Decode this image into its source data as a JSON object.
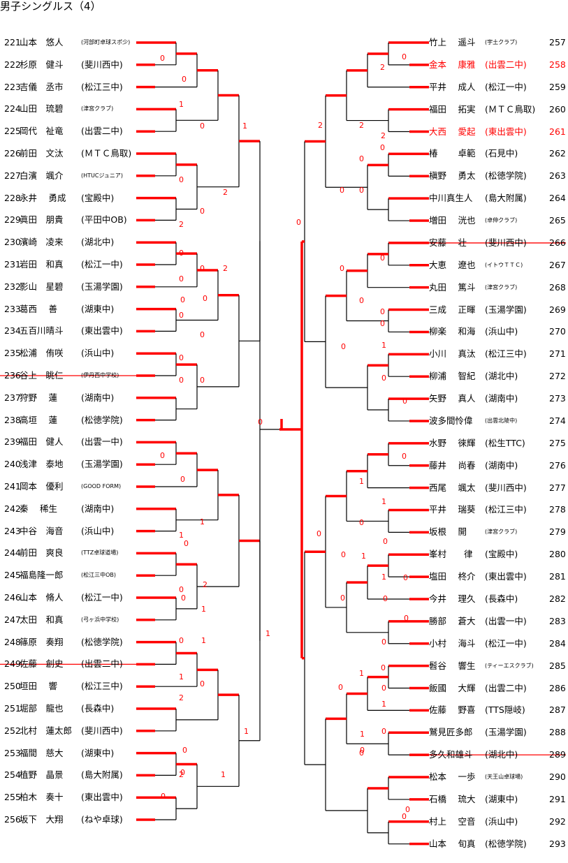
{
  "title": "男子シングルス（4）",
  "colors": {
    "win": "#ff0000",
    "line": "#000000",
    "winner_text": "#ff0000"
  },
  "left": [
    {
      "no": "221",
      "name": "山本　悠人",
      "aff": "(河部町卓球スポ少)",
      "small": true
    },
    {
      "no": "222",
      "name": "杉原　健斗",
      "aff": "(斐川西中)"
    },
    {
      "no": "223",
      "name": "吉儀　丞市",
      "aff": "(松江三中)"
    },
    {
      "no": "224",
      "name": "山田　琉碧",
      "aff": "(津宮クラブ)",
      "small": true
    },
    {
      "no": "225",
      "name": "岡代　祉竜",
      "aff": "(出雲二中)"
    },
    {
      "no": "226",
      "name": "前田　文汰",
      "aff": "(ＭＴＣ鳥取)"
    },
    {
      "no": "227",
      "name": "白濱　颯介",
      "aff": "(HTUCジュニア)",
      "small": true
    },
    {
      "no": "228",
      "name": "永井　 勇成",
      "aff": "(宝殿中)"
    },
    {
      "no": "229",
      "name": "眞田　朋貴",
      "aff": "(平田中OB)"
    },
    {
      "no": "230",
      "name": "濱崎　凌来",
      "aff": "(湖北中)"
    },
    {
      "no": "231",
      "name": "岩田　和真",
      "aff": "(松江一中)"
    },
    {
      "no": "232",
      "name": "影山　星碧",
      "aff": "(玉湯学園)"
    },
    {
      "no": "233",
      "name": "葛西　 善",
      "aff": "(湖東中)"
    },
    {
      "no": "234",
      "name": "五百川晴斗",
      "aff": "(東出雲中)"
    },
    {
      "no": "235",
      "name": "松浦　侑咲",
      "aff": "(浜山中)"
    },
    {
      "no": "236",
      "name": "谷上　眺仁",
      "aff": "(伊丹西中学校)",
      "small": true,
      "strike": true
    },
    {
      "no": "237",
      "name": "狩野　 蓮",
      "aff": "(湖南中)"
    },
    {
      "no": "238",
      "name": "高垣　 蓮",
      "aff": "(松徳学院)"
    },
    {
      "no": "239",
      "name": "福田　健人",
      "aff": "(出雲一中)"
    },
    {
      "no": "240",
      "name": "浅津　泰地",
      "aff": "(玉湯学園)"
    },
    {
      "no": "241",
      "name": "岡本　優利",
      "aff": "(GOOD FORM)",
      "small": true
    },
    {
      "no": "242",
      "name": "秦　 稀生",
      "aff": "(湖南中)"
    },
    {
      "no": "243",
      "name": "中谷　海音",
      "aff": "(浜山中)"
    },
    {
      "no": "244",
      "name": "前田　爽良",
      "aff": "(TTZ卓球道場)",
      "small": true
    },
    {
      "no": "245",
      "name": "福島隆一郎",
      "aff": "(松江三中OB)",
      "small": true
    },
    {
      "no": "246",
      "name": "山本　脩人",
      "aff": "(松江一中)"
    },
    {
      "no": "247",
      "name": "太田　和真",
      "aff": "(弓ヶ浜中学校)",
      "small": true
    },
    {
      "no": "248",
      "name": "篠原　奏翔",
      "aff": "(松徳学院)"
    },
    {
      "no": "249",
      "name": "佐藤　創史",
      "aff": "(出雲二中)",
      "strike": true
    },
    {
      "no": "250",
      "name": "垣田　 響",
      "aff": "(松江三中)"
    },
    {
      "no": "251",
      "name": "堀部　龍也",
      "aff": "(長森中)"
    },
    {
      "no": "252",
      "name": "北村　蓮太郎",
      "aff": "(斐川西中)"
    },
    {
      "no": "253",
      "name": "福間　慈大",
      "aff": "(湖東中)"
    },
    {
      "no": "254",
      "name": "植野　晶景",
      "aff": "(島大附属)"
    },
    {
      "no": "255",
      "name": "柏木　奏十",
      "aff": "(東出雲中)"
    },
    {
      "no": "256",
      "name": "坂下　大翔",
      "aff": "(ねや卓球)"
    }
  ],
  "right": [
    {
      "no": "257",
      "name": "竹上　 遥斗",
      "aff": "(宇土クラブ)",
      "small": true
    },
    {
      "no": "258",
      "name": "金本　 康雅",
      "aff": "(出雲二中)",
      "red": true
    },
    {
      "no": "259",
      "name": "平井　 成人",
      "aff": "(松江一中)"
    },
    {
      "no": "260",
      "name": "福田　 拓実",
      "aff": "(ＭＴＣ鳥取)"
    },
    {
      "no": "261",
      "name": "大西　 愛起",
      "aff": "(東出雲中)",
      "red": true
    },
    {
      "no": "262",
      "name": "椿　　 卓範",
      "aff": "(石見中)"
    },
    {
      "no": "263",
      "name": "槇野　 勇太",
      "aff": "(松徳学院)"
    },
    {
      "no": "264",
      "name": "中川真生人",
      "aff": "(島大附属)"
    },
    {
      "no": "265",
      "name": "増田　 洸也",
      "aff": "(卓伸クラブ)",
      "small": true
    },
    {
      "no": "266",
      "name": "安藤　 壮",
      "aff": "(斐川西中)",
      "strike": true
    },
    {
      "no": "267",
      "name": "大恵　 遼也",
      "aff": "(イトウＴＴＣ)",
      "small": true
    },
    {
      "no": "268",
      "name": "丸田　 篤斗",
      "aff": "(津宮クラブ)",
      "small": true
    },
    {
      "no": "269",
      "name": "三成　 正暉",
      "aff": "(玉湯学園)"
    },
    {
      "no": "270",
      "name": "柳楽　 和海",
      "aff": "(浜山中)"
    },
    {
      "no": "271",
      "name": "小川　 真汰",
      "aff": "(松江三中)"
    },
    {
      "no": "272",
      "name": "柳浦　 智紀",
      "aff": "(湖北中)"
    },
    {
      "no": "273",
      "name": "矢野　 真人",
      "aff": "(湖南中)"
    },
    {
      "no": "274",
      "name": "波多間怜偉",
      "aff": "(出雲北陵中)",
      "small": true
    },
    {
      "no": "275",
      "name": "水野　 徠輝",
      "aff": "(松生TTC)"
    },
    {
      "no": "276",
      "name": "藤井　 尚春",
      "aff": "(湖南中)"
    },
    {
      "no": "277",
      "name": "西尾　 颯太",
      "aff": "(斐川西中)"
    },
    {
      "no": "278",
      "name": "平井　 瑞葵",
      "aff": "(松江三中)"
    },
    {
      "no": "279",
      "name": "坂根　 開",
      "aff": "(津宮クラブ)",
      "small": true
    },
    {
      "no": "280",
      "name": "峯村　　律",
      "aff": "(宝殿中)"
    },
    {
      "no": "281",
      "name": "塩田　 柊介",
      "aff": "(東出雲中)"
    },
    {
      "no": "282",
      "name": "今井　 理久",
      "aff": "(長森中)"
    },
    {
      "no": "283",
      "name": "勝部　 蒼大",
      "aff": "(出雲一中)"
    },
    {
      "no": "284",
      "name": "小村　 海斗",
      "aff": "(松江一中)"
    },
    {
      "no": "285",
      "name": "髫谷　 響生",
      "aff": "(ティーエスクラブ)",
      "small": true
    },
    {
      "no": "286",
      "name": "飯國　 大輝",
      "aff": "(出雲二中)"
    },
    {
      "no": "287",
      "name": "佐藤　 野喜",
      "aff": "(TTS隠岐)"
    },
    {
      "no": "288",
      "name": "鷲見匠多郎",
      "aff": "(玉湯学園)"
    },
    {
      "no": "289",
      "name": "多久和雄斗",
      "aff": "(湖北中)",
      "strike": true
    },
    {
      "no": "290",
      "name": "松本　 一歩",
      "aff": "(天王山卓球場)",
      "small": true
    },
    {
      "no": "291",
      "name": "石橋　 琉大",
      "aff": "(湖東中)"
    },
    {
      "no": "292",
      "name": "村上　 空音",
      "aff": "(浜山中)"
    },
    {
      "no": "293",
      "name": "山本　 旬真",
      "aff": "(松徳学院)"
    }
  ],
  "scores": [
    "0",
    "0",
    "1",
    "0",
    "1",
    "0",
    "0",
    "2",
    "2",
    "0",
    "0",
    "2",
    "0",
    "0",
    "0",
    "0",
    "0",
    "0",
    "0",
    "0",
    "0",
    "1",
    "0",
    "0",
    "1",
    "1",
    "0",
    "2",
    "0",
    "0",
    "1",
    "0",
    "1",
    "0",
    "1",
    "2",
    "1",
    "0",
    "2",
    "0",
    "1",
    "0",
    "2",
    "2",
    "0",
    "0",
    "0",
    "2",
    "0",
    "2",
    "0",
    "0",
    "0",
    "0",
    "0",
    "0",
    "0",
    "1",
    "0",
    "0",
    "0",
    "0",
    "1",
    "1",
    "0",
    "0",
    "1",
    "0",
    "1",
    "0",
    "0",
    "0",
    "0",
    "1",
    "0",
    "0",
    "0",
    "0",
    "0",
    "1",
    "0",
    "0",
    "0",
    "0",
    "0",
    "1"
  ]
}
